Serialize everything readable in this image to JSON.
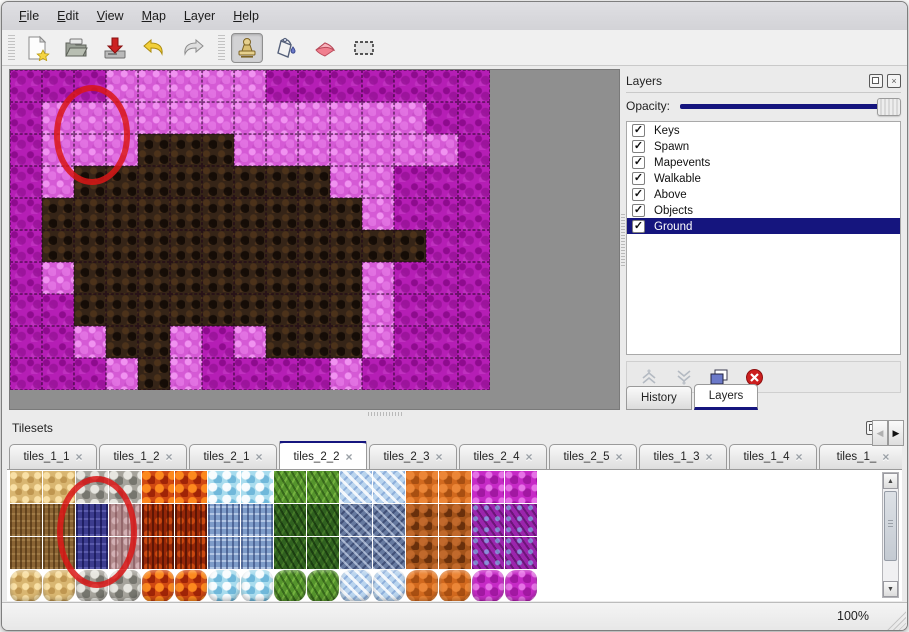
{
  "menu": {
    "items": [
      "File",
      "Edit",
      "View",
      "Map",
      "Layer",
      "Help"
    ]
  },
  "toolbar": {
    "tools": [
      {
        "name": "new"
      },
      {
        "name": "open"
      },
      {
        "name": "save"
      },
      {
        "name": "undo"
      },
      {
        "name": "redo"
      },
      {
        "name": "stamp",
        "active": true
      },
      {
        "name": "fill"
      },
      {
        "name": "eraser"
      },
      {
        "name": "select"
      }
    ]
  },
  "map_editor": {
    "annotation": "red-ellipse-highlight",
    "tile_legend": {
      "M": "magenta-ground",
      "P": "pink-rough",
      "B": "brown-dirt"
    },
    "grid": [
      "MMMPPPPPMMMMMMM",
      "MPPPPPPPPPPPPMM",
      "MPPPBBBPPPPPPPM",
      "MPBBBBBBBBPPMMM",
      "MBBBBBBBBBBPMMM",
      "MBBBBBBBBBBBBMM",
      "MPBBBBBBBBBPMMM",
      "MMBBBBBBBBBPMMM",
      "MMPBBPMPBBBPMMM",
      "MMMPBPMMMMPMMMM"
    ]
  },
  "layers_panel": {
    "title": "Layers",
    "opacity_label": "Opacity:",
    "opacity_percent": 100,
    "layers": [
      {
        "name": "Keys",
        "checked": true,
        "selected": false
      },
      {
        "name": "Spawn",
        "checked": true,
        "selected": false
      },
      {
        "name": "Mapevents",
        "checked": true,
        "selected": false
      },
      {
        "name": "Walkable",
        "checked": true,
        "selected": false
      },
      {
        "name": "Above",
        "checked": true,
        "selected": false
      },
      {
        "name": "Objects",
        "checked": true,
        "selected": false
      },
      {
        "name": "Ground",
        "checked": true,
        "selected": true
      }
    ],
    "tools": [
      "raise-layer",
      "lower-layer",
      "duplicate-layer",
      "delete-layer"
    ],
    "tabs": [
      {
        "label": "History",
        "active": false
      },
      {
        "label": "Layers",
        "active": true
      }
    ]
  },
  "tilesets_panel": {
    "title": "Tilesets",
    "tabs": [
      {
        "label": "tiles_1_1",
        "active": false
      },
      {
        "label": "tiles_1_2",
        "active": false
      },
      {
        "label": "tiles_2_1",
        "active": false
      },
      {
        "label": "tiles_2_2",
        "active": true
      },
      {
        "label": "tiles_2_3",
        "active": false
      },
      {
        "label": "tiles_2_4",
        "active": false
      },
      {
        "label": "tiles_2_5",
        "active": false
      },
      {
        "label": "tiles_1_3",
        "active": false
      },
      {
        "label": "tiles_1_4",
        "active": false
      },
      {
        "label": "tiles_1_",
        "active": false
      }
    ],
    "annotation": "red-ellipse-highlight on blue tile",
    "rows": [
      [
        "sand",
        "sand",
        "stone",
        "stone",
        "lava",
        "lava",
        "water",
        "water",
        "vine",
        "vine",
        "crystal",
        "crystal",
        "orange",
        "orange",
        "magenta",
        "magenta"
      ],
      [
        "bark",
        "bark",
        "blueSel",
        "mauve",
        "fire",
        "fire",
        "ice",
        "ice",
        "moss",
        "moss",
        "frost",
        "frost",
        "rust",
        "rust",
        "purple",
        "purple"
      ],
      [
        "bark",
        "bark",
        "blueSel",
        "mauve",
        "fire",
        "fire",
        "ice",
        "ice",
        "moss",
        "moss",
        "frost",
        "frost",
        "rust",
        "rust",
        "purple",
        "purple"
      ],
      [
        "sand",
        "sand",
        "stone",
        "stone",
        "lava",
        "lava",
        "water",
        "water",
        "vine",
        "vine",
        "crystal",
        "crystal",
        "orange",
        "orange",
        "magenta",
        "magenta"
      ]
    ]
  },
  "status_bar": {
    "zoom": "100%"
  },
  "colors": {
    "accent": "#15157e",
    "annotation": "#d91616",
    "selection_bg": "#15157e",
    "map_background": "#8f8f8f"
  }
}
